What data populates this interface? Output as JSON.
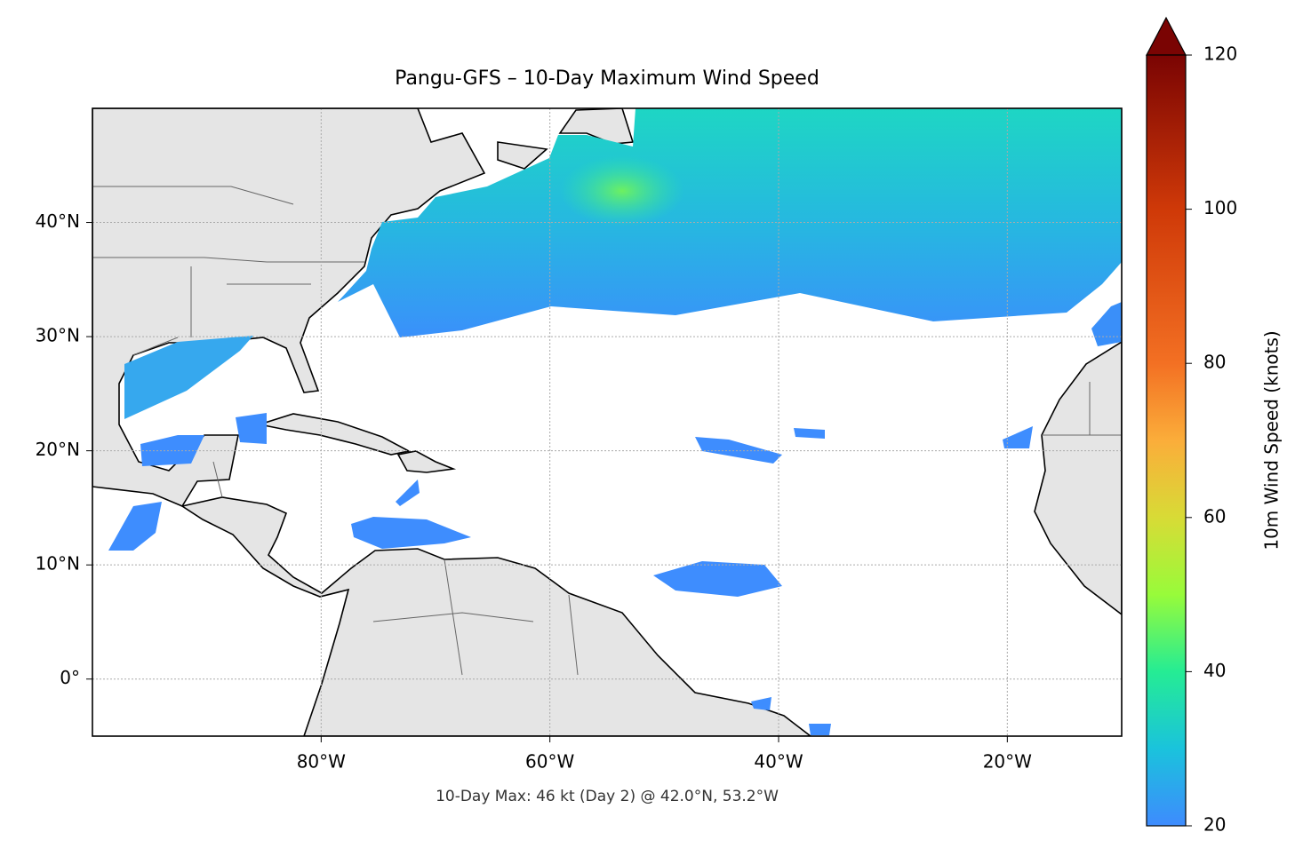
{
  "chart_data": {
    "type": "map",
    "title": "Pangu-GFS – 10-Day Maximum Wind Speed",
    "footnote": "10-Day Max: 46 kt (Day 2) @ 42.0°N, 53.2°W",
    "xlim": [
      -100,
      -10
    ],
    "ylim": [
      -5,
      50
    ],
    "xticks": [
      {
        "value": -80,
        "label": "80°W"
      },
      {
        "value": -60,
        "label": "60°W"
      },
      {
        "value": -40,
        "label": "40°W"
      },
      {
        "value": -20,
        "label": "20°W"
      }
    ],
    "yticks": [
      {
        "value": 0,
        "label": "0°"
      },
      {
        "value": 10,
        "label": "10°N"
      },
      {
        "value": 20,
        "label": "20°N"
      },
      {
        "value": 30,
        "label": "30°N"
      },
      {
        "value": 40,
        "label": "40°N"
      }
    ],
    "grid": true,
    "colorbar": {
      "label": "10m Wind Speed (knots)",
      "lim": [
        20,
        120
      ],
      "ticks": [
        20,
        40,
        60,
        80,
        100,
        120
      ]
    }
  }
}
